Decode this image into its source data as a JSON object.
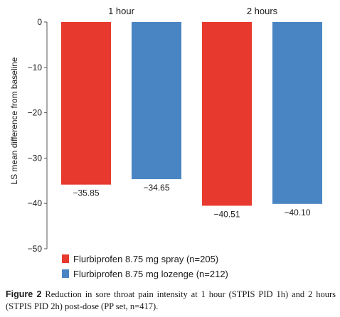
{
  "chart_data": {
    "type": "bar",
    "title": "",
    "xlabel": "",
    "ylabel": "LS mean difference from baseline",
    "ylim": [
      -50,
      0
    ],
    "yticks": [
      0,
      -10,
      -20,
      -30,
      -40,
      -50
    ],
    "ytick_labels": [
      "0",
      "−10",
      "−20",
      "−30",
      "−40",
      "−50"
    ],
    "categories": [
      "1 hour",
      "2 hours"
    ],
    "series": [
      {
        "name": "Flurbiprofen 8.75 mg spray (n=205)",
        "color": "#e8392e",
        "values": [
          -35.85,
          -40.51
        ],
        "labels": [
          "−35.85",
          "−40.51"
        ]
      },
      {
        "name": "Flurbiprofen 8.75 mg lozenge (n=212)",
        "color": "#4a85c3",
        "values": [
          -34.65,
          -40.1
        ],
        "labels": [
          "−34.65",
          "−40.10"
        ]
      }
    ],
    "category_label_position": "top",
    "legend_position": "bottom-left",
    "grid": false
  },
  "caption": {
    "label": "Figure 2",
    "text": "Reduction in sore throat pain intensity at 1 hour (STPIS PID 1h) and 2 hours (STPIS PID 2h) post-dose (PP set, n=417)."
  }
}
